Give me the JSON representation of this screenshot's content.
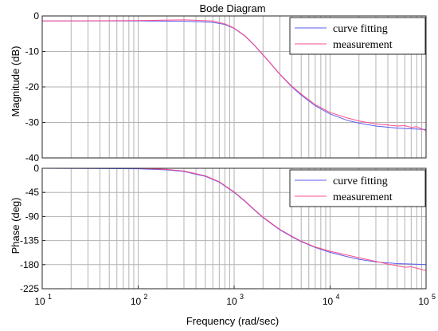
{
  "figure": {
    "title": "Bode Diagram",
    "colors": {
      "fit": "#5b5bf0",
      "measurement": "#ff4d8d",
      "grid": "#b3b3b3"
    }
  },
  "chart_data": [
    {
      "type": "line",
      "panel": "magnitude",
      "ylabel": "Magnitude (dB)",
      "xlabel": "",
      "xscale": "log",
      "xlim": [
        10,
        100000
      ],
      "ylim": [
        -40,
        0
      ],
      "yticks": [
        0,
        -10,
        -20,
        -30,
        -40
      ],
      "yticklabels": [
        "0",
        "-10",
        "-20",
        "-30",
        "-40"
      ],
      "grid": true,
      "legend_position": "top-right",
      "series": [
        {
          "name": "curve fitting",
          "x": [
            10,
            100,
            300,
            600,
            800,
            1000,
            1300,
            1600,
            2000,
            2500,
            3000,
            4000,
            5000,
            7000,
            10000,
            15000,
            20000,
            30000,
            50000,
            100000
          ],
          "y": [
            -1.4,
            -1.4,
            -1.5,
            -1.8,
            -2.4,
            -3.5,
            -5.7,
            -8.1,
            -11.0,
            -14.0,
            -16.5,
            -20.0,
            -22.3,
            -25.3,
            -27.6,
            -29.4,
            -30.2,
            -31.0,
            -31.6,
            -32.0
          ]
        },
        {
          "name": "measurement",
          "x": [
            10,
            100,
            300,
            600,
            800,
            1000,
            1300,
            1600,
            2000,
            2500,
            3000,
            4000,
            5000,
            7000,
            10000,
            15000,
            20000,
            30000,
            50000,
            60000,
            70000,
            80000,
            100000
          ],
          "y": [
            -1.4,
            -1.3,
            -1.1,
            -1.4,
            -2.2,
            -3.4,
            -5.6,
            -8.0,
            -10.9,
            -13.9,
            -16.4,
            -19.8,
            -22.0,
            -25.0,
            -27.2,
            -28.7,
            -29.6,
            -30.4,
            -31.0,
            -30.9,
            -31.4,
            -31.2,
            -32.3
          ]
        }
      ]
    },
    {
      "type": "line",
      "panel": "phase",
      "ylabel": "Phase (deg)",
      "xlabel": "Frequency  (rad/sec)",
      "xscale": "log",
      "xlim": [
        10,
        100000
      ],
      "xticks": [
        10,
        100,
        1000,
        10000,
        100000
      ],
      "xticklabels": [
        [
          "10",
          "1"
        ],
        [
          "10",
          "2"
        ],
        [
          "10",
          "3"
        ],
        [
          "10",
          "4"
        ],
        [
          "10",
          "5"
        ]
      ],
      "ylim": [
        -225,
        0
      ],
      "yticks": [
        0,
        -45,
        -90,
        -135,
        -180,
        -225
      ],
      "yticklabels": [
        "0",
        "-45",
        "-90",
        "-135",
        "-180",
        "-225"
      ],
      "grid": true,
      "legend_position": "top-right",
      "series": [
        {
          "name": "curve fitting",
          "x": [
            10,
            100,
            200,
            300,
            500,
            700,
            1000,
            1300,
            1600,
            2000,
            2500,
            3000,
            4000,
            5000,
            7000,
            10000,
            15000,
            20000,
            30000,
            50000,
            100000
          ],
          "y": [
            0,
            -1,
            -3,
            -6,
            -15,
            -26,
            -45,
            -62,
            -77,
            -92,
            -105,
            -115,
            -128,
            -137,
            -148,
            -157,
            -165,
            -170,
            -175,
            -178,
            -180
          ]
        },
        {
          "name": "measurement",
          "x": [
            10,
            100,
            200,
            300,
            500,
            700,
            1000,
            1300,
            1600,
            2000,
            2500,
            3000,
            4000,
            5000,
            7000,
            10000,
            15000,
            20000,
            30000,
            40000,
            50000,
            60000,
            70000,
            100000
          ],
          "y": [
            0,
            0,
            -2,
            -5,
            -14,
            -25,
            -44,
            -61,
            -76,
            -91,
            -104,
            -114,
            -127,
            -136,
            -147,
            -155,
            -162,
            -167,
            -174,
            -179,
            -182,
            -185,
            -184,
            -191
          ]
        }
      ]
    }
  ]
}
